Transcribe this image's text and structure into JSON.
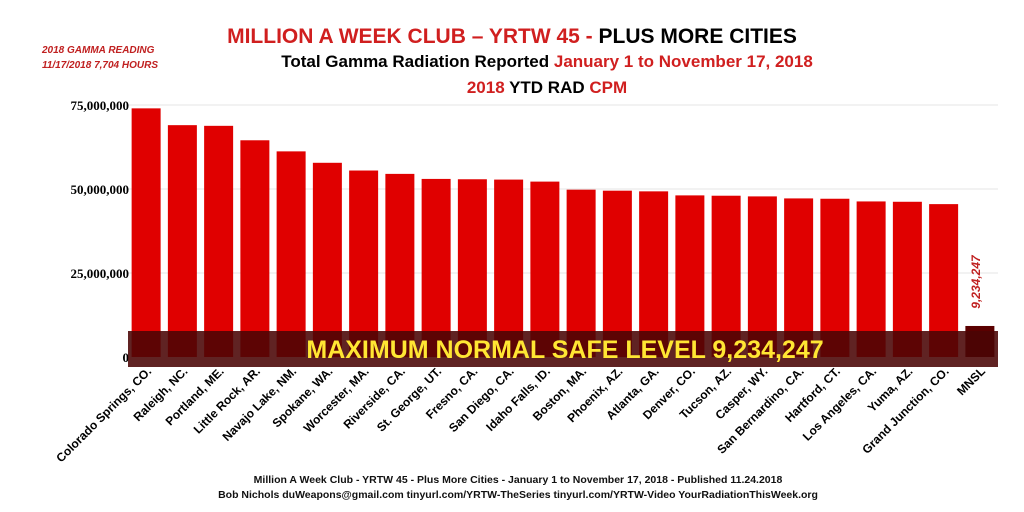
{
  "header": {
    "title_part1": "MILLION A WEEK CLUB – YRTW 45 - ",
    "title_part2": "PLUS MORE CITIES",
    "subtitle_part1": "Total Gamma Radiation Reported ",
    "subtitle_part2": "January 1 to November 17, 2018",
    "line3_part1": "2018",
    "line3_part2": "YTD RAD",
    "line3_part3": "CPM"
  },
  "note": {
    "line1": "2018 GAMMA READING",
    "line2": "11/17/2018  7,704 HOURS"
  },
  "footer": {
    "line1": "Million A Week Club - YRTW 45 - Plus More Cities - January 1 to November 17, 2018  -  Published 11.24.2018",
    "line2": "Bob Nichols  duWeapons@gmail.com tinyurl.com/YRTW-TheSeries  tinyurl.com/YRTW-Video  YourRadiationThisWeek.org"
  },
  "colors": {
    "bar": "#e00000",
    "bar_dark": "#5a0000",
    "band": "#4a0404",
    "band_text": "#ffe633",
    "grid": "#e4e4e4",
    "mnsl_label": "#c02020"
  },
  "chart_data": {
    "type": "bar",
    "categories": [
      "Colorado Springs, CO.",
      "Raleigh, NC.",
      "Portland, ME.",
      "Little Rock, AR.",
      "Navajo Lake, NM.",
      "Spokane, WA.",
      "Worcester, MA.",
      "Riverside, CA.",
      "St. George, UT.",
      "Fresno, CA.",
      "San Diego, CA.",
      "Idaho Falls, ID.",
      "Boston, MA.",
      "Phoenix, AZ.",
      "Atlanta, GA.",
      "Denver, CO.",
      "Tucson, AZ.",
      "Casper, WY.",
      "San Bernardino, CA.",
      "Hartford, CT.",
      "Los Angeles, CA.",
      "Yuma, AZ.",
      "Grand Junction, CO.",
      "MNSL"
    ],
    "values": [
      74000000,
      69000000,
      68800000,
      64500000,
      61200000,
      57800000,
      55500000,
      54500000,
      53000000,
      52900000,
      52800000,
      52200000,
      49800000,
      49500000,
      49300000,
      48100000,
      48000000,
      47800000,
      47200000,
      47100000,
      46300000,
      46200000,
      45500000,
      9234247
    ],
    "ylim": [
      0,
      75000000
    ],
    "yticks": [
      0,
      25000000,
      50000000,
      75000000
    ],
    "ytick_labels": [
      "0",
      "25,000,000",
      "50,000,000",
      "75,000,000"
    ],
    "mnsl_value_label": "9,234,247",
    "band_label": "MAXIMUM NORMAL SAFE LEVEL 9,234,247",
    "grid": true
  }
}
